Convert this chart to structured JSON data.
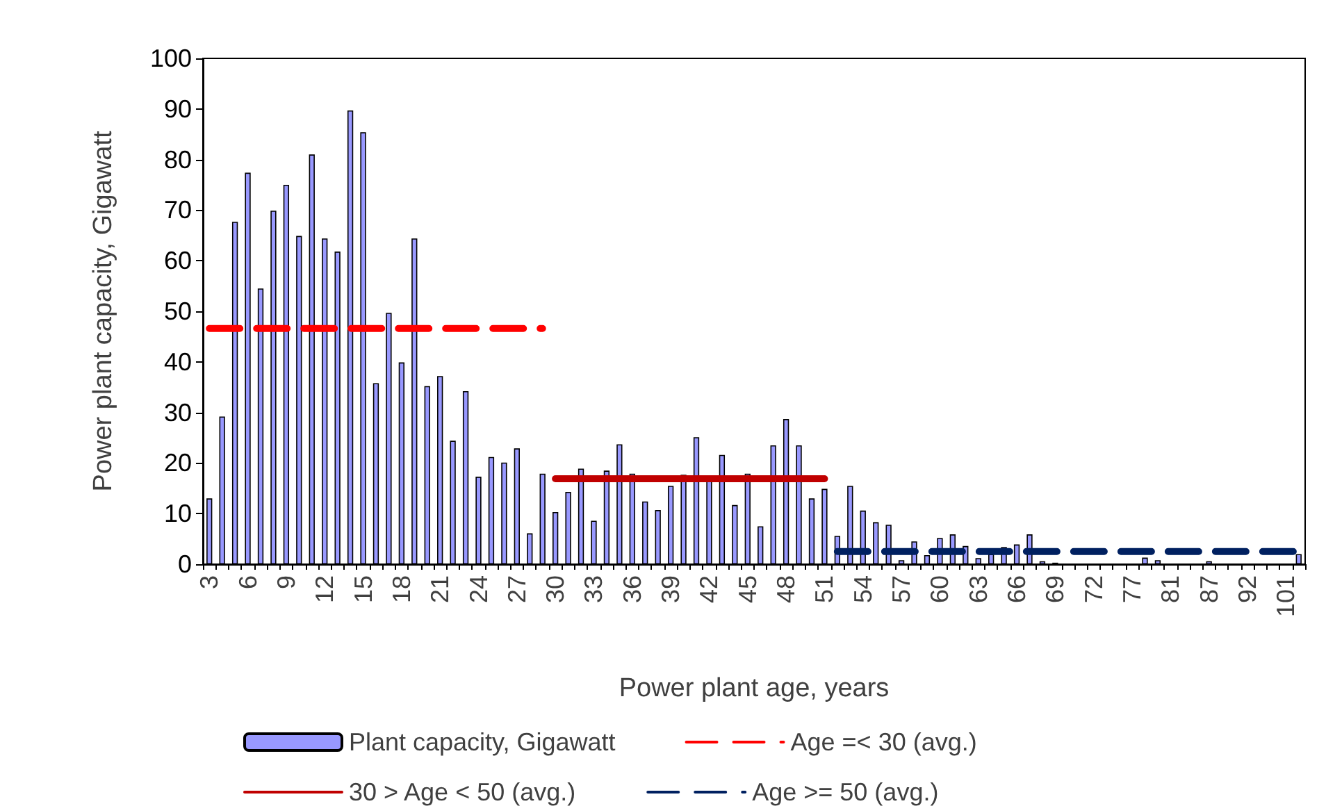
{
  "chart_data": {
    "type": "bar",
    "xlabel": "Power plant age, years",
    "ylabel": "Power plant capacity, Gigawatt",
    "categories": [
      "3",
      null,
      null,
      "6",
      null,
      null,
      "9",
      null,
      null,
      "12",
      null,
      null,
      "15",
      null,
      null,
      "18",
      null,
      null,
      "21",
      null,
      null,
      "24",
      null,
      null,
      "27",
      null,
      null,
      "30",
      null,
      null,
      "33",
      null,
      null,
      "36",
      null,
      null,
      "39",
      null,
      null,
      "42",
      null,
      null,
      "45",
      null,
      null,
      "48",
      null,
      null,
      "51",
      null,
      null,
      "54",
      null,
      null,
      "57",
      null,
      null,
      "60",
      null,
      null,
      "63",
      null,
      null,
      "66",
      null,
      null,
      "69",
      null,
      null,
      "72",
      null,
      null,
      "77",
      null,
      null,
      "81",
      null,
      null,
      "87",
      null,
      null,
      "92",
      null,
      null,
      "101",
      null
    ],
    "series": [
      {
        "name": "Plant capacity, Gigawatt",
        "color": "#9999ff",
        "values": [
          13.0,
          29.2,
          67.7,
          77.4,
          54.5,
          69.9,
          75.0,
          64.9,
          81.0,
          64.4,
          61.8,
          89.7,
          85.4,
          35.8,
          49.7,
          39.9,
          64.4,
          35.2,
          37.2,
          24.4,
          34.2,
          17.3,
          21.2,
          20.1,
          22.9,
          6.1,
          17.9,
          10.3,
          14.3,
          18.9,
          8.6,
          18.5,
          23.7,
          17.9,
          12.4,
          10.7,
          15.5,
          17.7,
          25.1,
          17.0,
          21.6,
          11.7,
          17.9,
          7.5,
          23.5,
          28.7,
          23.5,
          13.0,
          14.9,
          5.6,
          15.5,
          10.6,
          8.3,
          7.8,
          0.8,
          4.5,
          1.8,
          5.2,
          5.9,
          3.6,
          1.2,
          2.0,
          3.4,
          3.9,
          5.9,
          0.6,
          0.3,
          0,
          0,
          0,
          0,
          0,
          0,
          1.3,
          0.8,
          0,
          0,
          0,
          0.6,
          0,
          0,
          0,
          0,
          0,
          0,
          2.0
        ]
      },
      {
        "name": "Age =< 30 (avg.)",
        "type": "line",
        "color": "#ff0000",
        "line_style": "dashed",
        "values": [
          46.6,
          46.6,
          46.6,
          46.6,
          46.6,
          46.6,
          46.6,
          46.6,
          46.6,
          46.6,
          46.6,
          46.6,
          46.6,
          46.6,
          46.6,
          46.6,
          46.6,
          46.6,
          46.6,
          46.6,
          46.6,
          46.6,
          46.6,
          46.6,
          46.6,
          46.6,
          46.6,
          null,
          null,
          null,
          null,
          null,
          null,
          null,
          null,
          null,
          null,
          null,
          null,
          null,
          null,
          null,
          null,
          null,
          null,
          null,
          null,
          null,
          null,
          null,
          null,
          null,
          null,
          null,
          null,
          null,
          null,
          null,
          null,
          null,
          null,
          null,
          null,
          null,
          null,
          null,
          null,
          null,
          null,
          null,
          null,
          null,
          null,
          null,
          null,
          null,
          null,
          null,
          null,
          null,
          null,
          null,
          null,
          null,
          null,
          null
        ]
      },
      {
        "name": "30 > Age < 50 (avg.)",
        "type": "line",
        "color": "#c00000",
        "line_style": "solid",
        "values": [
          null,
          null,
          null,
          null,
          null,
          null,
          null,
          null,
          null,
          null,
          null,
          null,
          null,
          null,
          null,
          null,
          null,
          null,
          null,
          null,
          null,
          null,
          null,
          null,
          null,
          null,
          null,
          16.9,
          16.9,
          16.9,
          16.9,
          16.9,
          16.9,
          16.9,
          16.9,
          16.9,
          16.9,
          16.9,
          16.9,
          16.9,
          16.9,
          16.9,
          16.9,
          16.9,
          16.9,
          16.9,
          16.9,
          16.9,
          16.9,
          null,
          null,
          null,
          null,
          null,
          null,
          null,
          null,
          null,
          null,
          null,
          null,
          null,
          null,
          null,
          null,
          null,
          null,
          null,
          null,
          null,
          null,
          null,
          null,
          null,
          null,
          null,
          null,
          null,
          null,
          null,
          null,
          null,
          null,
          null,
          null,
          null
        ]
      },
      {
        "name": "Age >= 50 (avg.)",
        "type": "line",
        "color": "#002060",
        "line_style": "dashed",
        "values": [
          null,
          null,
          null,
          null,
          null,
          null,
          null,
          null,
          null,
          null,
          null,
          null,
          null,
          null,
          null,
          null,
          null,
          null,
          null,
          null,
          null,
          null,
          null,
          null,
          null,
          null,
          null,
          null,
          null,
          null,
          null,
          null,
          null,
          null,
          null,
          null,
          null,
          null,
          null,
          null,
          null,
          null,
          null,
          null,
          null,
          null,
          null,
          null,
          null,
          2.5,
          2.5,
          2.5,
          2.5,
          2.5,
          2.5,
          2.5,
          2.5,
          2.5,
          2.5,
          2.5,
          2.5,
          2.5,
          2.5,
          2.5,
          2.5,
          2.5,
          2.5,
          2.5,
          2.5,
          2.5,
          2.5,
          2.5,
          2.5,
          2.5,
          2.5,
          2.5,
          2.5,
          2.5,
          2.5,
          2.5,
          2.5,
          2.5,
          2.5,
          2.5,
          2.5,
          2.5
        ]
      }
    ],
    "ylim": [
      0,
      100
    ],
    "yticks": [
      0,
      10,
      20,
      30,
      40,
      50,
      60,
      70,
      80,
      90,
      100
    ],
    "grid": false,
    "marker": "none",
    "legend": "bottom"
  }
}
